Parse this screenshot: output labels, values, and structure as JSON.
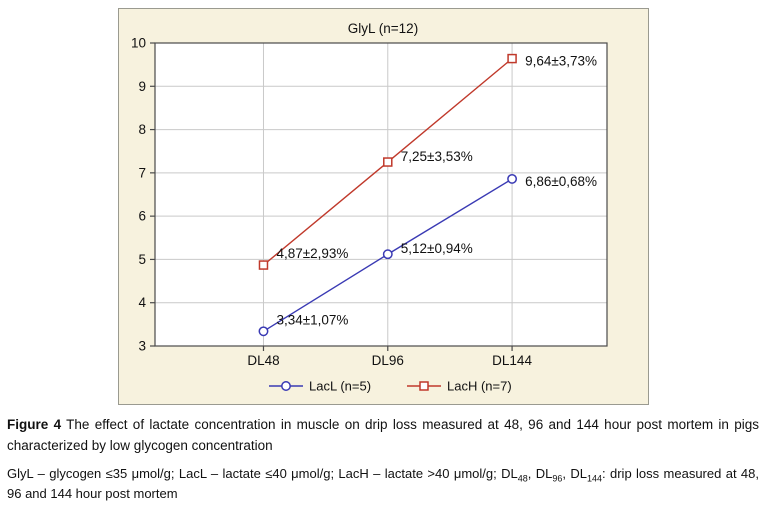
{
  "figure": {
    "caption_label": "Figure 4",
    "caption_text": " The effect of lactate concentration in muscle on drip loss measured at 48, 96 and 144 hour post mortem in pigs characterized by low glycogen concentration"
  },
  "footnote": {
    "segments": [
      {
        "text": "GlyL – glycogen ≤35 μmol/g; LacL – lactate ≤40 μmol/g; LacH – lactate >40 μmol/g; DL"
      },
      {
        "text": "48",
        "sub": true
      },
      {
        "text": ", DL"
      },
      {
        "text": "96",
        "sub": true
      },
      {
        "text": ", DL"
      },
      {
        "text": "144",
        "sub": true
      },
      {
        "text": ": drip loss measured at 48, 96 and 144 hour post mortem"
      }
    ]
  },
  "chart_data": {
    "type": "line",
    "title": "GlyL (n=12)",
    "categories": [
      "DL48",
      "DL96",
      "DL144"
    ],
    "series": [
      {
        "name": "LacL (n=5)",
        "marker": "circle",
        "color": "#3a3ab4",
        "values": [
          3.34,
          5.12,
          6.86
        ],
        "point_labels": [
          "3,34±1,07%",
          "5,12±0,94%",
          "6,86±0,68%"
        ]
      },
      {
        "name": "LacH (n=7)",
        "marker": "square",
        "color": "#c0392b",
        "values": [
          4.87,
          7.25,
          9.64
        ],
        "point_labels": [
          "4,87±2,93%",
          "7,25±3,53%",
          "9,64±3,73%"
        ]
      }
    ],
    "ylim": [
      3,
      10
    ],
    "yticks": [
      3,
      4,
      5,
      6,
      7,
      8,
      9,
      10
    ],
    "grid": true,
    "legend_position": "bottom",
    "colors": {
      "panel_bg": "#f7f2de",
      "plot_bg": "#ffffff",
      "grid": "#c9c9c9",
      "border": "#4a4a4a",
      "text": "#111111"
    }
  }
}
